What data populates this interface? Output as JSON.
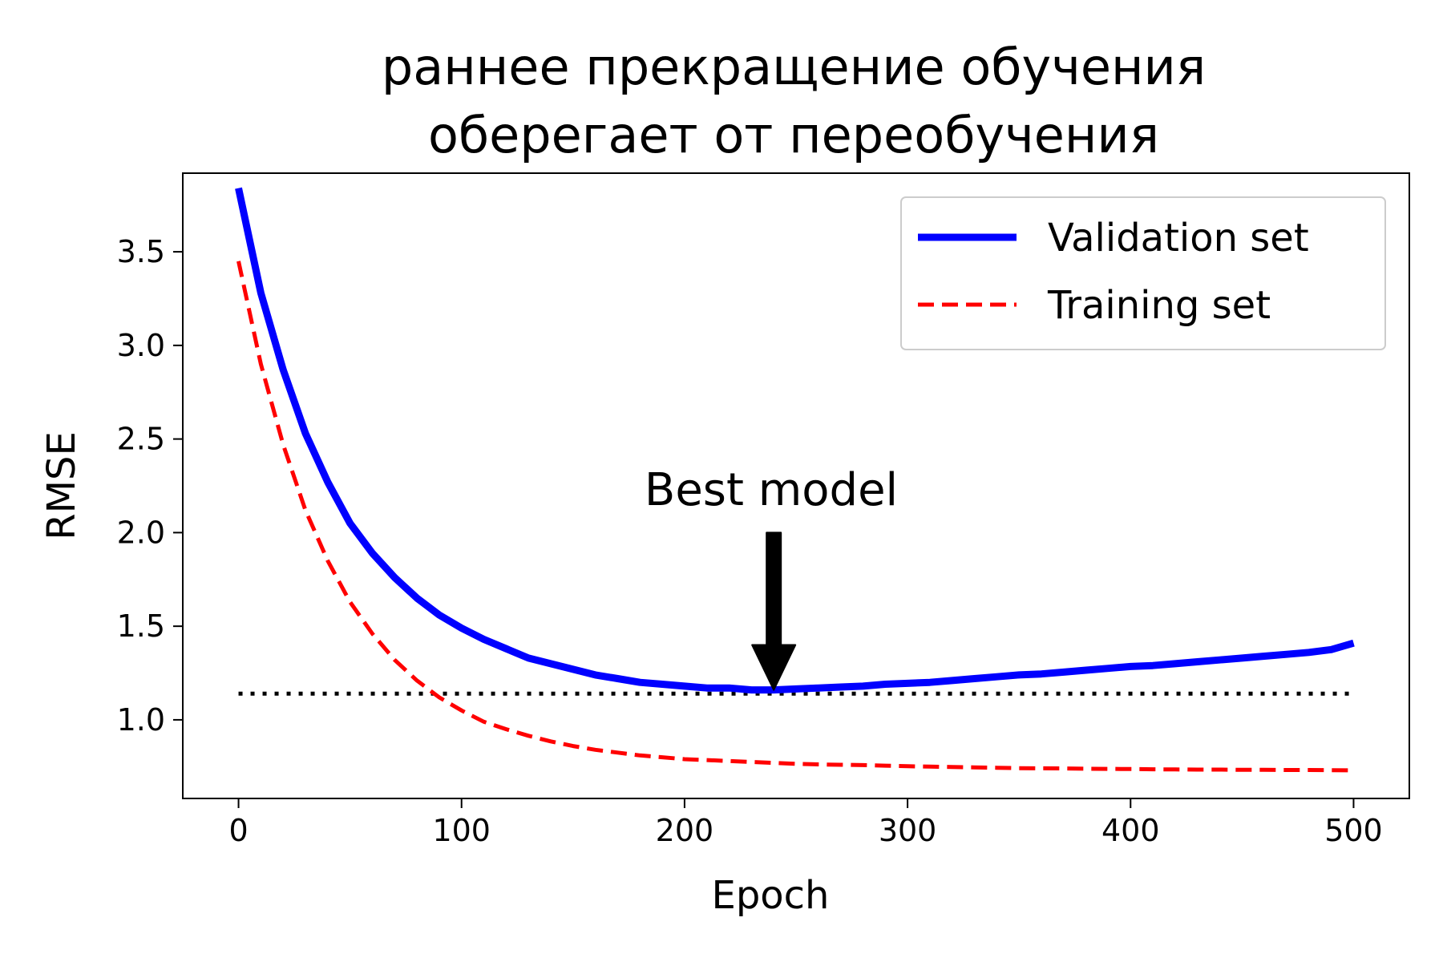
{
  "chart_data": {
    "type": "line",
    "title_lines": [
      "раннее прекращение обучения",
      "оберегает от переобучения"
    ],
    "xlabel": "Epoch",
    "ylabel": "RMSE",
    "xlim": [
      -25,
      525
    ],
    "ylim": [
      0.58,
      3.92
    ],
    "x_ticks": [
      0,
      100,
      200,
      300,
      400,
      500
    ],
    "x_tick_labels": [
      "0",
      "100",
      "200",
      "300",
      "400",
      "500"
    ],
    "y_ticks": [
      1.0,
      1.5,
      2.0,
      2.5,
      3.0,
      3.5
    ],
    "y_tick_labels": [
      "1.0",
      "1.5",
      "2.0",
      "2.5",
      "3.0",
      "3.5"
    ],
    "grid": false,
    "legend_position": "top-right",
    "x": [
      0,
      10,
      20,
      30,
      40,
      50,
      60,
      70,
      80,
      90,
      100,
      110,
      120,
      130,
      140,
      150,
      160,
      170,
      180,
      190,
      200,
      210,
      220,
      230,
      240,
      250,
      260,
      270,
      280,
      290,
      300,
      310,
      320,
      330,
      340,
      350,
      360,
      370,
      380,
      390,
      400,
      410,
      420,
      430,
      440,
      450,
      460,
      470,
      480,
      490,
      500
    ],
    "series": [
      {
        "name": "Validation set",
        "color": "#0000ff",
        "style": "solid",
        "values": [
          3.84,
          3.28,
          2.87,
          2.53,
          2.27,
          2.05,
          1.89,
          1.76,
          1.65,
          1.56,
          1.49,
          1.43,
          1.38,
          1.33,
          1.3,
          1.27,
          1.24,
          1.22,
          1.2,
          1.19,
          1.18,
          1.17,
          1.17,
          1.16,
          1.16,
          1.165,
          1.17,
          1.175,
          1.18,
          1.19,
          1.195,
          1.2,
          1.21,
          1.22,
          1.23,
          1.24,
          1.245,
          1.255,
          1.265,
          1.275,
          1.285,
          1.29,
          1.3,
          1.31,
          1.32,
          1.33,
          1.34,
          1.35,
          1.36,
          1.375,
          1.41
        ]
      },
      {
        "name": "Training set",
        "color": "#ff0000",
        "style": "dashed",
        "values": [
          3.45,
          2.9,
          2.47,
          2.12,
          1.85,
          1.63,
          1.46,
          1.32,
          1.21,
          1.12,
          1.05,
          0.99,
          0.95,
          0.915,
          0.885,
          0.86,
          0.84,
          0.825,
          0.81,
          0.8,
          0.79,
          0.785,
          0.78,
          0.775,
          0.77,
          0.765,
          0.762,
          0.76,
          0.758,
          0.755,
          0.752,
          0.75,
          0.748,
          0.746,
          0.744,
          0.742,
          0.741,
          0.74,
          0.739,
          0.738,
          0.737,
          0.736,
          0.735,
          0.734,
          0.734,
          0.733,
          0.733,
          0.732,
          0.732,
          0.731,
          0.73
        ]
      }
    ],
    "reference_line": {
      "y": 1.14,
      "x_start": 0,
      "x_end": 500,
      "style": "dotted",
      "color": "#000000"
    },
    "annotation": {
      "text": "Best model",
      "arrow_x": 240,
      "arrow_from_y": 2.0,
      "arrow_to_y": 1.16,
      "color": "#000000"
    }
  }
}
